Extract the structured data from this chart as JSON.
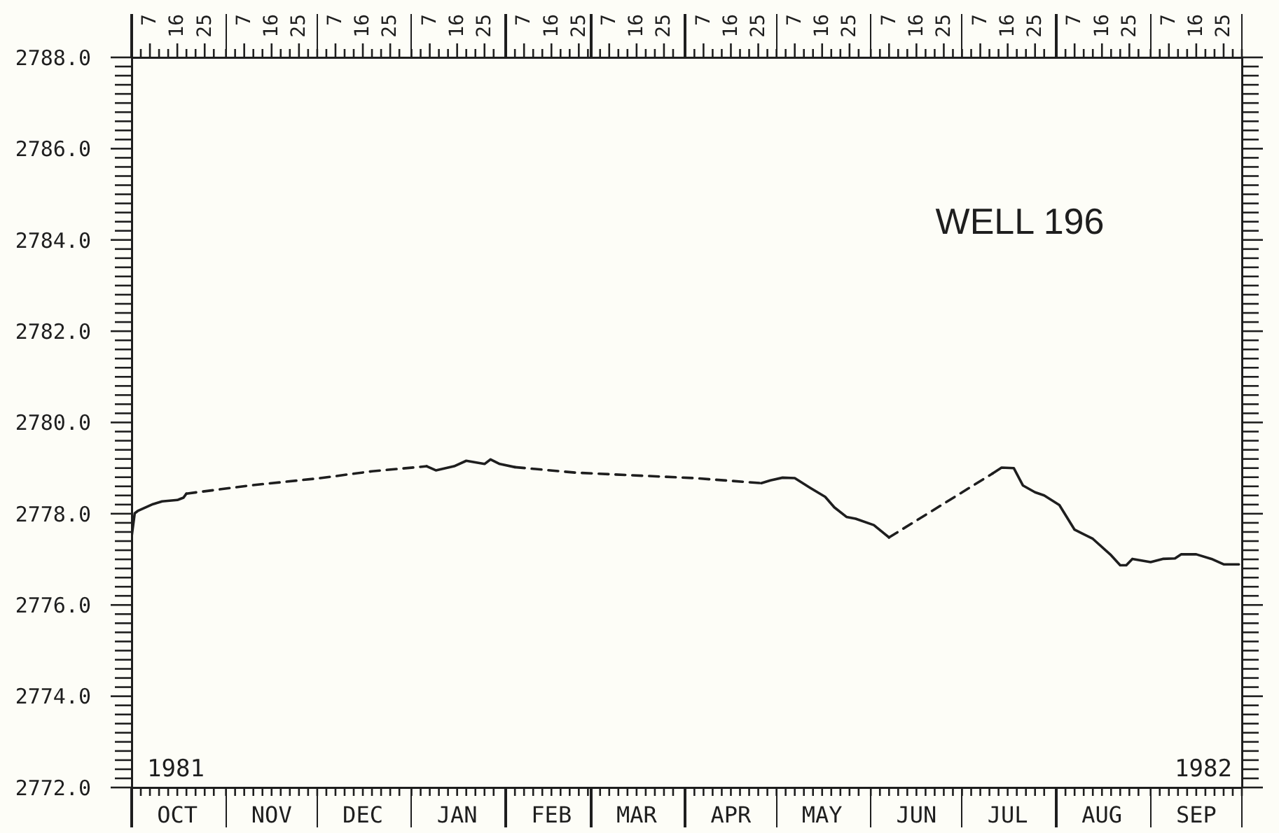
{
  "chart_data": {
    "type": "line",
    "title": "WELL 196",
    "annotations": [
      "1981",
      "1982"
    ],
    "xlim": [
      "1981-10-01",
      "1982-10-01"
    ],
    "xticks": [
      {
        "value": "1981-10-01",
        "label": null
      },
      {
        "value": "1981-10-04",
        "label": null
      },
      {
        "value": "1981-10-07",
        "label": null
      },
      {
        "value": "1981-10-10",
        "label": null
      },
      {
        "value": "1981-10-13",
        "label": null
      },
      {
        "value": "1981-10-16",
        "label": "OCT"
      },
      {
        "value": "1981-10-19",
        "label": null
      },
      {
        "value": "1981-10-22",
        "label": null
      },
      {
        "value": "1981-10-25",
        "label": null
      },
      {
        "value": "1981-10-28",
        "label": null
      },
      {
        "value": "1981-11-01",
        "label": null
      },
      {
        "value": "1981-11-04",
        "label": null
      },
      {
        "value": "1981-11-07",
        "label": null
      },
      {
        "value": "1981-11-10",
        "label": null
      },
      {
        "value": "1981-11-13",
        "label": null
      },
      {
        "value": "1981-11-16",
        "label": "NOV"
      },
      {
        "value": "1981-11-19",
        "label": null
      },
      {
        "value": "1981-11-22",
        "label": null
      },
      {
        "value": "1981-11-25",
        "label": null
      },
      {
        "value": "1981-11-28",
        "label": null
      },
      {
        "value": "1981-12-01",
        "label": null
      },
      {
        "value": "1981-12-04",
        "label": null
      },
      {
        "value": "1981-12-07",
        "label": null
      },
      {
        "value": "1981-12-10",
        "label": null
      },
      {
        "value": "1981-12-13",
        "label": null
      },
      {
        "value": "1981-12-16",
        "label": "DEC"
      },
      {
        "value": "1981-12-19",
        "label": null
      },
      {
        "value": "1981-12-22",
        "label": null
      },
      {
        "value": "1981-12-25",
        "label": null
      },
      {
        "value": "1981-12-28",
        "label": null
      },
      {
        "value": "1982-01-01",
        "label": null
      },
      {
        "value": "1982-01-04",
        "label": null
      },
      {
        "value": "1982-01-07",
        "label": null
      },
      {
        "value": "1982-01-10",
        "label": null
      },
      {
        "value": "1982-01-13",
        "label": null
      },
      {
        "value": "1982-01-16",
        "label": "JAN"
      },
      {
        "value": "1982-01-19",
        "label": null
      },
      {
        "value": "1982-01-22",
        "label": null
      },
      {
        "value": "1982-01-25",
        "label": null
      },
      {
        "value": "1982-01-28",
        "label": null
      },
      {
        "value": "1982-02-01",
        "label": null
      },
      {
        "value": "1982-02-04",
        "label": null
      },
      {
        "value": "1982-02-07",
        "label": null
      },
      {
        "value": "1982-02-10",
        "label": null
      },
      {
        "value": "1982-02-13",
        "label": null
      },
      {
        "value": "1982-02-16",
        "label": "FEB"
      },
      {
        "value": "1982-02-19",
        "label": null
      },
      {
        "value": "1982-02-22",
        "label": null
      },
      {
        "value": "1982-02-25",
        "label": null
      },
      {
        "value": "1982-02-28",
        "label": null
      },
      {
        "value": "1982-03-01",
        "label": null
      },
      {
        "value": "1982-03-04",
        "label": null
      },
      {
        "value": "1982-03-07",
        "label": null
      },
      {
        "value": "1982-03-10",
        "label": null
      },
      {
        "value": "1982-03-13",
        "label": null
      },
      {
        "value": "1982-03-16",
        "label": "MAR"
      },
      {
        "value": "1982-03-19",
        "label": null
      },
      {
        "value": "1982-03-22",
        "label": null
      },
      {
        "value": "1982-03-25",
        "label": null
      },
      {
        "value": "1982-03-28",
        "label": null
      },
      {
        "value": "1982-04-01",
        "label": null
      },
      {
        "value": "1982-04-04",
        "label": null
      },
      {
        "value": "1982-04-07",
        "label": null
      },
      {
        "value": "1982-04-10",
        "label": null
      },
      {
        "value": "1982-04-13",
        "label": null
      },
      {
        "value": "1982-04-16",
        "label": "APR"
      },
      {
        "value": "1982-04-19",
        "label": null
      },
      {
        "value": "1982-04-22",
        "label": null
      },
      {
        "value": "1982-04-25",
        "label": null
      },
      {
        "value": "1982-04-28",
        "label": null
      },
      {
        "value": "1982-05-01",
        "label": null
      },
      {
        "value": "1982-05-04",
        "label": null
      },
      {
        "value": "1982-05-07",
        "label": null
      },
      {
        "value": "1982-05-10",
        "label": null
      },
      {
        "value": "1982-05-13",
        "label": null
      },
      {
        "value": "1982-05-16",
        "label": "MAY"
      },
      {
        "value": "1982-05-19",
        "label": null
      },
      {
        "value": "1982-05-22",
        "label": null
      },
      {
        "value": "1982-05-25",
        "label": null
      },
      {
        "value": "1982-05-28",
        "label": null
      },
      {
        "value": "1982-06-01",
        "label": null
      },
      {
        "value": "1982-06-04",
        "label": null
      },
      {
        "value": "1982-06-07",
        "label": null
      },
      {
        "value": "1982-06-10",
        "label": null
      },
      {
        "value": "1982-06-13",
        "label": null
      },
      {
        "value": "1982-06-16",
        "label": "JUN"
      },
      {
        "value": "1982-06-19",
        "label": null
      },
      {
        "value": "1982-06-22",
        "label": null
      },
      {
        "value": "1982-06-25",
        "label": null
      },
      {
        "value": "1982-06-28",
        "label": null
      },
      {
        "value": "1982-07-01",
        "label": null
      },
      {
        "value": "1982-07-04",
        "label": null
      },
      {
        "value": "1982-07-07",
        "label": null
      },
      {
        "value": "1982-07-10",
        "label": null
      },
      {
        "value": "1982-07-13",
        "label": null
      },
      {
        "value": "1982-07-16",
        "label": "JUL"
      },
      {
        "value": "1982-07-19",
        "label": null
      },
      {
        "value": "1982-07-22",
        "label": null
      },
      {
        "value": "1982-07-25",
        "label": null
      },
      {
        "value": "1982-07-28",
        "label": null
      },
      {
        "value": "1982-08-01",
        "label": null
      },
      {
        "value": "1982-08-04",
        "label": null
      },
      {
        "value": "1982-08-07",
        "label": null
      },
      {
        "value": "1982-08-10",
        "label": null
      },
      {
        "value": "1982-08-13",
        "label": null
      },
      {
        "value": "1982-08-16",
        "label": "AUG"
      },
      {
        "value": "1982-08-19",
        "label": null
      },
      {
        "value": "1982-08-22",
        "label": null
      },
      {
        "value": "1982-08-25",
        "label": null
      },
      {
        "value": "1982-08-28",
        "label": null
      },
      {
        "value": "1982-09-01",
        "label": null
      },
      {
        "value": "1982-09-04",
        "label": null
      },
      {
        "value": "1982-09-07",
        "label": null
      },
      {
        "value": "1982-09-10",
        "label": null
      },
      {
        "value": "1982-09-13",
        "label": null
      },
      {
        "value": "1982-09-16",
        "label": "SEP"
      },
      {
        "value": "1982-09-19",
        "label": null
      },
      {
        "value": "1982-09-22",
        "label": null
      },
      {
        "value": "1982-09-25",
        "label": null
      },
      {
        "value": "1982-09-28",
        "label": null
      },
      {
        "value": "1982-10-01",
        "label": null
      }
    ],
    "x2lim": [
      "1981-10-01",
      "1982-10-01"
    ],
    "x2ticks": [
      {
        "value": "1981-10-01",
        "label": null
      },
      {
        "value": "1981-10-04",
        "label": null
      },
      {
        "value": "1981-10-07",
        "label": "7"
      },
      {
        "value": "1981-10-10",
        "label": null
      },
      {
        "value": "1981-10-13",
        "label": null
      },
      {
        "value": "1981-10-16",
        "label": "16"
      },
      {
        "value": "1981-10-19",
        "label": null
      },
      {
        "value": "1981-10-22",
        "label": null
      },
      {
        "value": "1981-10-25",
        "label": "25"
      },
      {
        "value": "1981-10-28",
        "label": null
      },
      {
        "value": "1981-11-01",
        "label": null
      },
      {
        "value": "1981-11-04",
        "label": null
      },
      {
        "value": "1981-11-07",
        "label": "7"
      },
      {
        "value": "1981-11-10",
        "label": null
      },
      {
        "value": "1981-11-13",
        "label": null
      },
      {
        "value": "1981-11-16",
        "label": "16"
      },
      {
        "value": "1981-11-19",
        "label": null
      },
      {
        "value": "1981-11-22",
        "label": null
      },
      {
        "value": "1981-11-25",
        "label": "25"
      },
      {
        "value": "1981-11-28",
        "label": null
      },
      {
        "value": "1981-12-01",
        "label": null
      },
      {
        "value": "1981-12-04",
        "label": null
      },
      {
        "value": "1981-12-07",
        "label": "7"
      },
      {
        "value": "1981-12-10",
        "label": null
      },
      {
        "value": "1981-12-13",
        "label": null
      },
      {
        "value": "1981-12-16",
        "label": "16"
      },
      {
        "value": "1981-12-19",
        "label": null
      },
      {
        "value": "1981-12-22",
        "label": null
      },
      {
        "value": "1981-12-25",
        "label": "25"
      },
      {
        "value": "1981-12-28",
        "label": null
      },
      {
        "value": "1982-01-01",
        "label": null
      },
      {
        "value": "1982-01-04",
        "label": null
      },
      {
        "value": "1982-01-07",
        "label": "7"
      },
      {
        "value": "1982-01-10",
        "label": null
      },
      {
        "value": "1982-01-13",
        "label": null
      },
      {
        "value": "1982-01-16",
        "label": "16"
      },
      {
        "value": "1982-01-19",
        "label": null
      },
      {
        "value": "1982-01-22",
        "label": null
      },
      {
        "value": "1982-01-25",
        "label": "25"
      },
      {
        "value": "1982-01-28",
        "label": null
      },
      {
        "value": "1982-02-01",
        "label": null
      },
      {
        "value": "1982-02-04",
        "label": null
      },
      {
        "value": "1982-02-07",
        "label": "7"
      },
      {
        "value": "1982-02-10",
        "label": null
      },
      {
        "value": "1982-02-13",
        "label": null
      },
      {
        "value": "1982-02-16",
        "label": "16"
      },
      {
        "value": "1982-02-19",
        "label": null
      },
      {
        "value": "1982-02-22",
        "label": null
      },
      {
        "value": "1982-02-25",
        "label": "25"
      },
      {
        "value": "1982-02-28",
        "label": null
      },
      {
        "value": "1982-03-01",
        "label": null
      },
      {
        "value": "1982-03-04",
        "label": null
      },
      {
        "value": "1982-03-07",
        "label": "7"
      },
      {
        "value": "1982-03-10",
        "label": null
      },
      {
        "value": "1982-03-13",
        "label": null
      },
      {
        "value": "1982-03-16",
        "label": "16"
      },
      {
        "value": "1982-03-19",
        "label": null
      },
      {
        "value": "1982-03-22",
        "label": null
      },
      {
        "value": "1982-03-25",
        "label": "25"
      },
      {
        "value": "1982-03-28",
        "label": null
      },
      {
        "value": "1982-04-01",
        "label": null
      },
      {
        "value": "1982-04-04",
        "label": null
      },
      {
        "value": "1982-04-07",
        "label": "7"
      },
      {
        "value": "1982-04-10",
        "label": null
      },
      {
        "value": "1982-04-13",
        "label": null
      },
      {
        "value": "1982-04-16",
        "label": "16"
      },
      {
        "value": "1982-04-19",
        "label": null
      },
      {
        "value": "1982-04-22",
        "label": null
      },
      {
        "value": "1982-04-25",
        "label": "25"
      },
      {
        "value": "1982-04-28",
        "label": null
      },
      {
        "value": "1982-05-01",
        "label": null
      },
      {
        "value": "1982-05-04",
        "label": null
      },
      {
        "value": "1982-05-07",
        "label": "7"
      },
      {
        "value": "1982-05-10",
        "label": null
      },
      {
        "value": "1982-05-13",
        "label": null
      },
      {
        "value": "1982-05-16",
        "label": "16"
      },
      {
        "value": "1982-05-19",
        "label": null
      },
      {
        "value": "1982-05-22",
        "label": null
      },
      {
        "value": "1982-05-25",
        "label": "25"
      },
      {
        "value": "1982-05-28",
        "label": null
      },
      {
        "value": "1982-06-01",
        "label": null
      },
      {
        "value": "1982-06-04",
        "label": null
      },
      {
        "value": "1982-06-07",
        "label": "7"
      },
      {
        "value": "1982-06-10",
        "label": null
      },
      {
        "value": "1982-06-13",
        "label": null
      },
      {
        "value": "1982-06-16",
        "label": "16"
      },
      {
        "value": "1982-06-19",
        "label": null
      },
      {
        "value": "1982-06-22",
        "label": null
      },
      {
        "value": "1982-06-25",
        "label": "25"
      },
      {
        "value": "1982-06-28",
        "label": null
      },
      {
        "value": "1982-07-01",
        "label": null
      },
      {
        "value": "1982-07-04",
        "label": null
      },
      {
        "value": "1982-07-07",
        "label": "7"
      },
      {
        "value": "1982-07-10",
        "label": null
      },
      {
        "value": "1982-07-13",
        "label": null
      },
      {
        "value": "1982-07-16",
        "label": "16"
      },
      {
        "value": "1982-07-19",
        "label": null
      },
      {
        "value": "1982-07-22",
        "label": null
      },
      {
        "value": "1982-07-25",
        "label": "25"
      },
      {
        "value": "1982-07-28",
        "label": null
      },
      {
        "value": "1982-08-01",
        "label": null
      },
      {
        "value": "1982-08-04",
        "label": null
      },
      {
        "value": "1982-08-07",
        "label": "7"
      },
      {
        "value": "1982-08-10",
        "label": null
      },
      {
        "value": "1982-08-13",
        "label": null
      },
      {
        "value": "1982-08-16",
        "label": "16"
      },
      {
        "value": "1982-08-19",
        "label": null
      },
      {
        "value": "1982-08-22",
        "label": null
      },
      {
        "value": "1982-08-25",
        "label": "25"
      },
      {
        "value": "1982-08-28",
        "label": null
      },
      {
        "value": "1982-09-01",
        "label": null
      },
      {
        "value": "1982-09-04",
        "label": null
      },
      {
        "value": "1982-09-07",
        "label": "7"
      },
      {
        "value": "1982-09-10",
        "label": null
      },
      {
        "value": "1982-09-13",
        "label": null
      },
      {
        "value": "1982-09-16",
        "label": "16"
      },
      {
        "value": "1982-09-19",
        "label": null
      },
      {
        "value": "1982-09-22",
        "label": null
      },
      {
        "value": "1982-09-25",
        "label": "25"
      },
      {
        "value": "1982-09-28",
        "label": null
      },
      {
        "value": "1982-10-01",
        "label": null
      }
    ],
    "ylim": [
      2772,
      2788
    ],
    "yticks": [
      {
        "value": 2772,
        "label": "2772.0"
      },
      {
        "value": 2772.2,
        "label": null
      },
      {
        "value": 2772.4,
        "label": null
      },
      {
        "value": 2772.6,
        "label": null
      },
      {
        "value": 2772.8,
        "label": null
      },
      {
        "value": 2773,
        "label": null
      },
      {
        "value": 2773.2,
        "label": null
      },
      {
        "value": 2773.4,
        "label": null
      },
      {
        "value": 2773.6,
        "label": null
      },
      {
        "value": 2773.8,
        "label": null
      },
      {
        "value": 2774,
        "label": "2774.0"
      },
      {
        "value": 2774.2,
        "label": null
      },
      {
        "value": 2774.4,
        "label": null
      },
      {
        "value": 2774.6,
        "label": null
      },
      {
        "value": 2774.8,
        "label": null
      },
      {
        "value": 2775,
        "label": null
      },
      {
        "value": 2775.2,
        "label": null
      },
      {
        "value": 2775.4,
        "label": null
      },
      {
        "value": 2775.6,
        "label": null
      },
      {
        "value": 2775.8,
        "label": null
      },
      {
        "value": 2776,
        "label": "2776.0"
      },
      {
        "value": 2776.2,
        "label": null
      },
      {
        "value": 2776.4,
        "label": null
      },
      {
        "value": 2776.6,
        "label": null
      },
      {
        "value": 2776.8,
        "label": null
      },
      {
        "value": 2777,
        "label": null
      },
      {
        "value": 2777.2,
        "label": null
      },
      {
        "value": 2777.4,
        "label": null
      },
      {
        "value": 2777.6,
        "label": null
      },
      {
        "value": 2777.8,
        "label": null
      },
      {
        "value": 2778,
        "label": "2778.0"
      },
      {
        "value": 2778.2,
        "label": null
      },
      {
        "value": 2778.4,
        "label": null
      },
      {
        "value": 2778.6,
        "label": null
      },
      {
        "value": 2778.8,
        "label": null
      },
      {
        "value": 2779,
        "label": null
      },
      {
        "value": 2779.2,
        "label": null
      },
      {
        "value": 2779.4,
        "label": null
      },
      {
        "value": 2779.6,
        "label": null
      },
      {
        "value": 2779.8,
        "label": null
      },
      {
        "value": 2780,
        "label": "2780.0"
      },
      {
        "value": 2780.2,
        "label": null
      },
      {
        "value": 2780.4,
        "label": null
      },
      {
        "value": 2780.6,
        "label": null
      },
      {
        "value": 2780.8,
        "label": null
      },
      {
        "value": 2781,
        "label": null
      },
      {
        "value": 2781.2,
        "label": null
      },
      {
        "value": 2781.4,
        "label": null
      },
      {
        "value": 2781.6,
        "label": null
      },
      {
        "value": 2781.8,
        "label": null
      },
      {
        "value": 2782,
        "label": "2782.0"
      },
      {
        "value": 2782.2,
        "label": null
      },
      {
        "value": 2782.4,
        "label": null
      },
      {
        "value": 2782.6,
        "label": null
      },
      {
        "value": 2782.8,
        "label": null
      },
      {
        "value": 2783,
        "label": null
      },
      {
        "value": 2783.2,
        "label": null
      },
      {
        "value": 2783.4,
        "label": null
      },
      {
        "value": 2783.6,
        "label": null
      },
      {
        "value": 2783.8,
        "label": null
      },
      {
        "value": 2784,
        "label": "2784.0"
      },
      {
        "value": 2784.2,
        "label": null
      },
      {
        "value": 2784.4,
        "label": null
      },
      {
        "value": 2784.6,
        "label": null
      },
      {
        "value": 2784.8,
        "label": null
      },
      {
        "value": 2785,
        "label": null
      },
      {
        "value": 2785.2,
        "label": null
      },
      {
        "value": 2785.4,
        "label": null
      },
      {
        "value": 2785.6,
        "label": null
      },
      {
        "value": 2785.8,
        "label": null
      },
      {
        "value": 2786,
        "label": "2786.0"
      },
      {
        "value": 2786.2,
        "label": null
      },
      {
        "value": 2786.4,
        "label": null
      },
      {
        "value": 2786.6,
        "label": null
      },
      {
        "value": 2786.8,
        "label": null
      },
      {
        "value": 2787,
        "label": null
      },
      {
        "value": 2787.2,
        "label": null
      },
      {
        "value": 2787.4,
        "label": null
      },
      {
        "value": 2787.6,
        "label": null
      },
      {
        "value": 2787.8,
        "label": null
      },
      {
        "value": 2788,
        "label": "2788.0"
      }
    ],
    "series": [
      {
        "color": "#1e1e1e",
        "line_style": "solid",
        "x": [
          "1981-10-01",
          "1981-10-02",
          "1981-10-03",
          "1981-10-08",
          "1981-10-11",
          "1981-10-16",
          "1981-10-18",
          "1981-10-19"
        ],
        "values": [
          2777.5,
          2778.01,
          2778.06,
          2778.21,
          2778.27,
          2778.3,
          2778.35,
          2778.44
        ]
      },
      {
        "color": "#1e1e1e",
        "line_style": "dashed",
        "x": [
          "1981-10-19",
          "1981-11-09",
          "1981-12-02",
          "1981-12-19",
          "1982-01-06"
        ],
        "values": [
          2778.44,
          2778.62,
          2778.78,
          2778.93,
          2779.04
        ]
      },
      {
        "color": "#1e1e1e",
        "line_style": "solid",
        "x": [
          "1982-01-06",
          "1982-01-09",
          "1982-01-15",
          "1982-01-19",
          "1982-01-25",
          "1982-01-27",
          "1982-01-30",
          "1982-02-04"
        ],
        "values": [
          2779.04,
          2778.95,
          2779.04,
          2779.16,
          2779.09,
          2779.19,
          2779.09,
          2779.02
        ]
      },
      {
        "color": "#1e1e1e",
        "line_style": "dashed",
        "x": [
          "1982-02-04",
          "1982-02-24",
          "1982-04-04",
          "1982-04-26"
        ],
        "values": [
          2779.02,
          2778.9,
          2778.78,
          2778.67
        ]
      },
      {
        "color": "#1e1e1e",
        "line_style": "solid",
        "x": [
          "1982-04-26",
          "1982-04-29",
          "1982-05-03",
          "1982-05-07",
          "1982-05-12",
          "1982-05-17",
          "1982-05-20",
          "1982-05-24",
          "1982-05-27",
          "1982-06-02",
          "1982-06-07"
        ],
        "values": [
          2778.67,
          2778.73,
          2778.79,
          2778.78,
          2778.57,
          2778.37,
          2778.14,
          2777.93,
          2777.89,
          2777.75,
          2777.48
        ]
      },
      {
        "color": "#1e1e1e",
        "line_style": "dashed",
        "x": [
          "1982-06-07",
          "1982-07-11"
        ],
        "values": [
          2777.48,
          2778.88
        ]
      },
      {
        "color": "#1e1e1e",
        "line_style": "solid",
        "x": [
          "1982-07-11",
          "1982-07-14",
          "1982-07-18",
          "1982-07-21",
          "1982-07-25",
          "1982-07-28",
          "1982-08-02",
          "1982-08-07",
          "1982-08-13",
          "1982-08-19",
          "1982-08-22",
          "1982-08-24",
          "1982-08-26",
          "1982-09-01",
          "1982-09-05",
          "1982-09-09",
          "1982-09-11",
          "1982-09-16",
          "1982-09-21",
          "1982-09-25",
          "1982-09-30"
        ],
        "values": [
          2778.88,
          2779.01,
          2779.0,
          2778.62,
          2778.47,
          2778.4,
          2778.19,
          2777.65,
          2777.45,
          2777.09,
          2776.87,
          2776.87,
          2777.01,
          2776.94,
          2777.01,
          2777.02,
          2777.11,
          2777.11,
          2777.01,
          2776.89,
          2776.89
        ]
      }
    ]
  }
}
